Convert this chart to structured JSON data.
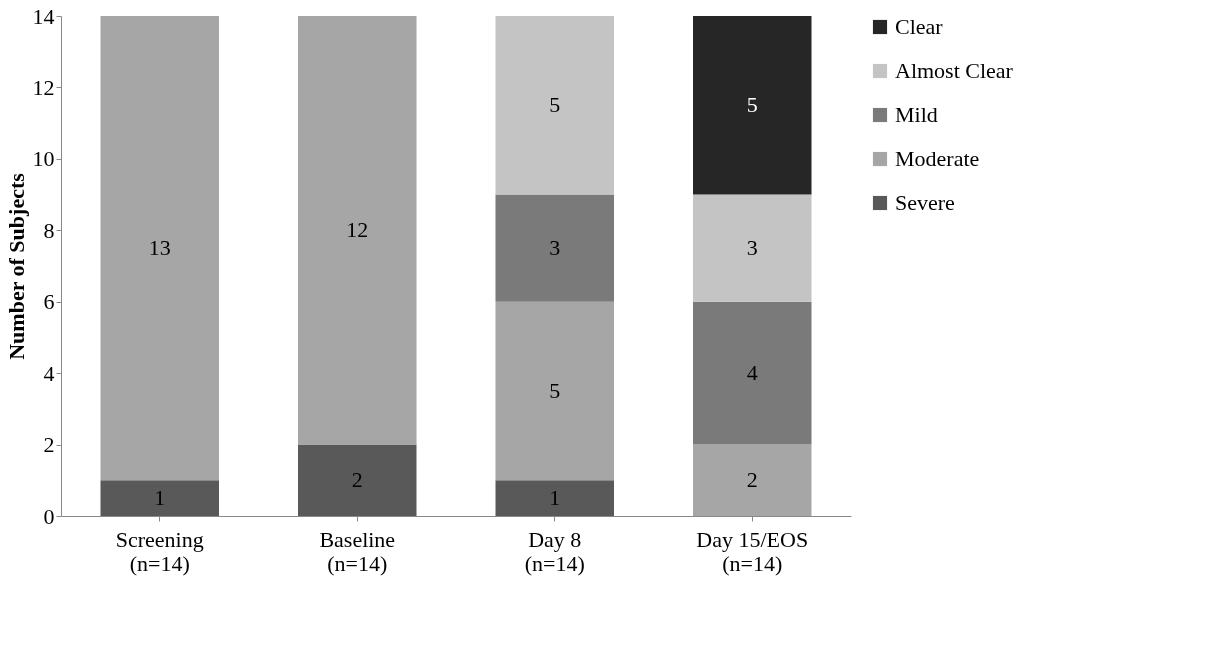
{
  "chart_data": {
    "type": "bar",
    "stacked": true,
    "ylabel": "Number of Subjects",
    "categories": [
      "Screening\n(n=14)",
      "Baseline\n(n=14)",
      "Day 8\n(n=14)",
      "Day 15/EOS\n(n=14)"
    ],
    "series": [
      {
        "name": "Severe",
        "color": "#595959",
        "values": [
          1,
          2,
          1,
          null
        ]
      },
      {
        "name": "Moderate",
        "color": "#a6a6a6",
        "values": [
          13,
          12,
          5,
          2
        ]
      },
      {
        "name": "Mild",
        "color": "#7a7a7a",
        "values": [
          null,
          null,
          3,
          4
        ]
      },
      {
        "name": "Almost Clear",
        "color": "#c4c4c4",
        "values": [
          null,
          null,
          5,
          3
        ]
      },
      {
        "name": "Clear",
        "color": "#262626",
        "values": [
          null,
          null,
          null,
          5
        ]
      }
    ],
    "ylim": [
      0,
      14
    ],
    "yticks": [
      0,
      2,
      4,
      6,
      8,
      10,
      12,
      14
    ],
    "grid": false,
    "legend": "right",
    "data_labels": true
  }
}
